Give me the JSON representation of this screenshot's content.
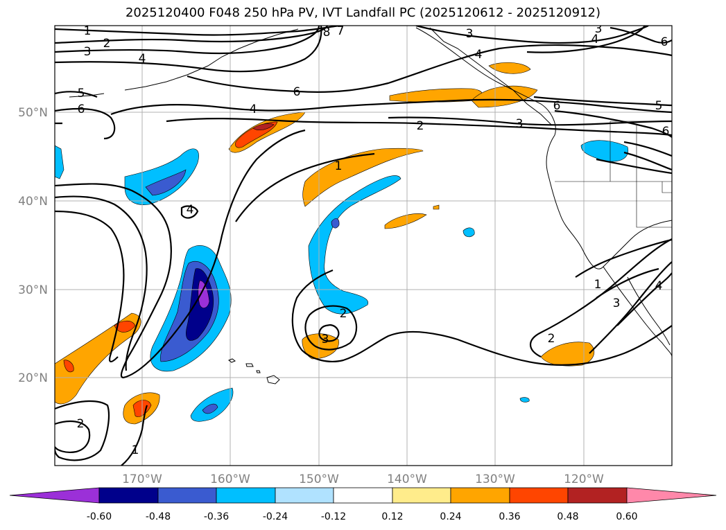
{
  "title": "2025120400 F048 250 hPa PV, IVT Landfall PC (2025120612 - 2025120912)",
  "map": {
    "lon_labels": [
      "170°W",
      "160°W",
      "150°W",
      "140°W",
      "130°W",
      "120°W"
    ],
    "lat_labels": [
      "50°N",
      "40°N",
      "30°N",
      "20°N"
    ],
    "contour_labels": [
      "1",
      "2",
      "3",
      "4",
      "5",
      "6",
      "8",
      "7",
      "1",
      "2",
      "3",
      "4",
      "5",
      "6",
      "2",
      "3",
      "1",
      "2",
      "3",
      "4",
      "6",
      "4",
      "2",
      "3",
      "2",
      "1",
      "3",
      "4",
      "6",
      "5",
      "6",
      "2"
    ]
  },
  "colorbar": {
    "levels": [
      "-0.60",
      "-0.48",
      "-0.36",
      "-0.24",
      "-0.12",
      "0.12",
      "0.24",
      "0.36",
      "0.48",
      "0.60"
    ],
    "colors": [
      "#9b30d8",
      "#00008b",
      "#3a5bd0",
      "#00bfff",
      "#b0e2ff",
      "#ffffff",
      "#ffec8b",
      "#ffa500",
      "#ff4500",
      "#b22222",
      "#ff88aa"
    ]
  },
  "colors": {
    "positive_strong": "#ff4500",
    "positive": "#ffa500",
    "positive_dark": "#b22222",
    "negative": "#00bfff",
    "negative_mid": "#3a5bd0",
    "negative_strong": "#00008b",
    "negative_extreme": "#9b30d8"
  }
}
